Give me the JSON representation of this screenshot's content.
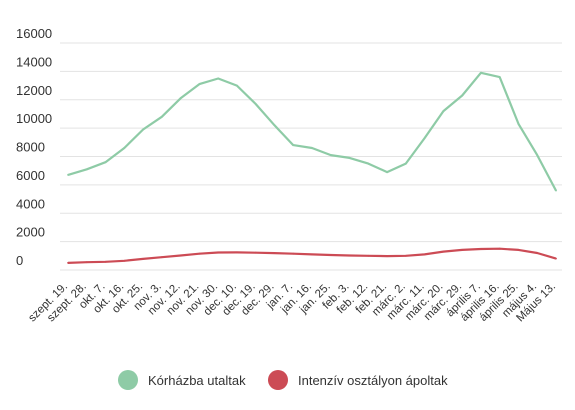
{
  "chart_data": {
    "type": "line",
    "title": "",
    "xlabel": "",
    "ylabel": "",
    "ylim": [
      0,
      16000
    ],
    "yticks": [
      0,
      2000,
      4000,
      6000,
      8000,
      10000,
      12000,
      14000,
      16000
    ],
    "grid": true,
    "legend_position": "bottom",
    "categories": [
      "szept. 19.",
      "szept. 28.",
      "okt. 7.",
      "okt. 16.",
      "okt. 25.",
      "nov. 3.",
      "nov. 12.",
      "nov. 21.",
      "nov. 30.",
      "dec. 10.",
      "dec. 19.",
      "dec. 29.",
      "jan. 7.",
      "jan. 16.",
      "jan. 25.",
      "feb. 3.",
      "feb. 12.",
      "feb. 21.",
      "márc. 2.",
      "márc. 11.",
      "márc. 20.",
      "márc. 29.",
      "április 7.",
      "április 16.",
      "április 25.",
      "május 4.",
      "Május 13."
    ],
    "series": [
      {
        "name": "Kórházba utaltak",
        "color": "#8ecba6",
        "values": [
          6700,
          7100,
          7600,
          8600,
          9900,
          10800,
          12100,
          13100,
          13500,
          13000,
          11700,
          10200,
          8800,
          8600,
          8100,
          7900,
          7500,
          6900,
          7500,
          9300,
          11200,
          12300,
          13900,
          13600,
          10300,
          8100,
          5600
        ]
      },
      {
        "name": "Intenzív osztályon ápoltak",
        "color": "#cc4b55",
        "values": [
          500,
          550,
          580,
          650,
          780,
          900,
          1020,
          1150,
          1230,
          1240,
          1220,
          1190,
          1150,
          1100,
          1060,
          1020,
          1000,
          980,
          1000,
          1100,
          1300,
          1420,
          1480,
          1500,
          1420,
          1200,
          800
        ]
      }
    ]
  }
}
